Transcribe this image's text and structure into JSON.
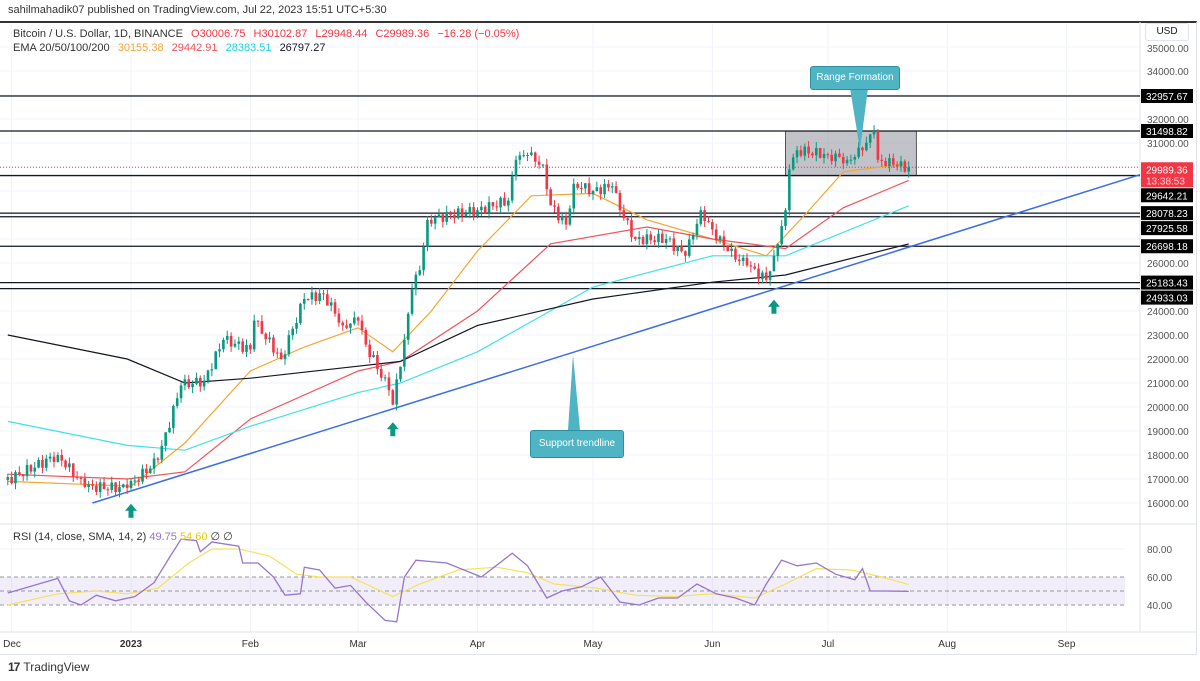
{
  "attribution": "sahilmahadik07 published on TradingView.com, Jul 22, 2023 15:51 UTC+5:30",
  "legend": {
    "symbol": "Bitcoin / U.S. Dollar, 1D, BINANCE",
    "open": "O30006.75",
    "high": "H30102.87",
    "low": "L29948.44",
    "close": "C29989.36",
    "change": "−16.28 (−0.05%)",
    "ema_label": "EMA 20/50/100/200",
    "ema_values": [
      "30155.38",
      "29442.91",
      "28383.51",
      "26797.27"
    ]
  },
  "rsi_legend": {
    "label": "RSI (14, close, SMA, 14, 2)",
    "rsi": "49.75",
    "sma": "54.60",
    "extra": "∅ ∅"
  },
  "currency": "USD",
  "logo": "TradingView",
  "colors": {
    "up": "#089981",
    "down": "#f23645",
    "ema20": "#f7a531",
    "ema50": "#f0545b",
    "ema100": "#3fe0ea",
    "ema200": "#131722",
    "trend": "#3a6de8",
    "rsi": "#9575cd",
    "rsi_sma": "#f5e15c",
    "callout": "#4fb4c4"
  },
  "chart_data": {
    "type": "candlestick",
    "price_axis": {
      "ticks": [
        "35000.00",
        "34000.00",
        "32000.00",
        "31000.00",
        "26000.00",
        "24000.00",
        "23000.00",
        "22000.00",
        "21000.00",
        "20000.00",
        "19000.00",
        "18000.00",
        "17000.00",
        "16000.00"
      ],
      "range": [
        15800,
        35200
      ]
    },
    "time_axis": {
      "ticks": [
        {
          "label": "Dec",
          "date": "2022-12-01"
        },
        {
          "label": "2023",
          "date": "2023-01-01",
          "bold": true
        },
        {
          "label": "Feb",
          "date": "2023-02-01"
        },
        {
          "label": "Mar",
          "date": "2023-03-01"
        },
        {
          "label": "Apr",
          "date": "2023-04-01"
        },
        {
          "label": "May",
          "date": "2023-05-01"
        },
        {
          "label": "Jun",
          "date": "2023-06-01"
        },
        {
          "label": "Jul",
          "date": "2023-07-01"
        },
        {
          "label": "Aug",
          "date": "2023-08-01"
        },
        {
          "label": "Sep",
          "date": "2023-09-01"
        }
      ]
    },
    "price_path": [
      [
        "2022-11-30",
        16960
      ],
      [
        "2022-12-13",
        18000
      ],
      [
        "2022-12-20",
        16670
      ],
      [
        "2022-12-31",
        16625
      ],
      [
        "2023-01-08",
        17800
      ],
      [
        "2023-01-14",
        20900
      ],
      [
        "2023-01-20",
        21100
      ],
      [
        "2023-01-25",
        22800
      ],
      [
        "2023-02-01",
        22400
      ],
      [
        "2023-02-02",
        23600
      ],
      [
        "2023-02-09",
        22000
      ],
      [
        "2023-02-15",
        24500
      ],
      [
        "2023-02-20",
        24700
      ],
      [
        "2023-02-25",
        23400
      ],
      [
        "2023-03-01",
        23600
      ],
      [
        "2023-03-03",
        22600
      ],
      [
        "2023-03-09",
        20700
      ],
      [
        "2023-03-10",
        20100
      ],
      [
        "2023-03-13",
        22800
      ],
      [
        "2023-03-15",
        24900
      ],
      [
        "2023-03-17",
        25700
      ],
      [
        "2023-03-19",
        27800
      ],
      [
        "2023-03-25",
        28000
      ],
      [
        "2023-04-01",
        28200
      ],
      [
        "2023-04-09",
        28600
      ],
      [
        "2023-04-11",
        30300
      ],
      [
        "2023-04-14",
        30500
      ],
      [
        "2023-04-18",
        30100
      ],
      [
        "2023-04-20",
        28400
      ],
      [
        "2023-04-24",
        27600
      ],
      [
        "2023-04-26",
        29300
      ],
      [
        "2023-05-01",
        29000
      ],
      [
        "2023-05-06",
        29200
      ],
      [
        "2023-05-08",
        28200
      ],
      [
        "2023-05-12",
        27000
      ],
      [
        "2023-05-20",
        27000
      ],
      [
        "2023-05-25",
        26300
      ],
      [
        "2023-05-29",
        28200
      ],
      [
        "2023-06-01",
        27400
      ],
      [
        "2023-06-05",
        26500
      ],
      [
        "2023-06-10",
        25900
      ],
      [
        "2023-06-15",
        25300
      ],
      [
        "2023-06-17",
        26300
      ],
      [
        "2023-06-20",
        28200
      ],
      [
        "2023-06-21",
        29900
      ],
      [
        "2023-06-23",
        30700
      ],
      [
        "2023-07-01",
        30500
      ],
      [
        "2023-07-06",
        30300
      ],
      [
        "2023-07-10",
        30700
      ],
      [
        "2023-07-13",
        31500
      ],
      [
        "2023-07-14",
        30300
      ],
      [
        "2023-07-18",
        30100
      ],
      [
        "2023-07-22",
        29989.36
      ]
    ],
    "ema": [
      {
        "name": "EMA 20",
        "color": "#f7a531",
        "points": [
          [
            "2022-11-30",
            16900
          ],
          [
            "2023-01-01",
            16700
          ],
          [
            "2023-01-15",
            18500
          ],
          [
            "2023-02-01",
            21500
          ],
          [
            "2023-02-15",
            22500
          ],
          [
            "2023-03-01",
            23300
          ],
          [
            "2023-03-10",
            22300
          ],
          [
            "2023-03-20",
            24000
          ],
          [
            "2023-04-01",
            26500
          ],
          [
            "2023-04-15",
            28800
          ],
          [
            "2023-05-01",
            28900
          ],
          [
            "2023-05-15",
            27800
          ],
          [
            "2023-06-01",
            27000
          ],
          [
            "2023-06-15",
            26300
          ],
          [
            "2023-06-25",
            28000
          ],
          [
            "2023-07-05",
            29800
          ],
          [
            "2023-07-22",
            30155.38
          ]
        ]
      },
      {
        "name": "EMA 50",
        "color": "#f0545b",
        "points": [
          [
            "2022-11-30",
            17200
          ],
          [
            "2022-12-31",
            17000
          ],
          [
            "2023-01-15",
            17300
          ],
          [
            "2023-02-01",
            19500
          ],
          [
            "2023-03-01",
            21500
          ],
          [
            "2023-03-12",
            21900
          ],
          [
            "2023-04-01",
            24000
          ],
          [
            "2023-04-20",
            26800
          ],
          [
            "2023-05-15",
            27500
          ],
          [
            "2023-06-01",
            27000
          ],
          [
            "2023-06-20",
            26600
          ],
          [
            "2023-07-05",
            28300
          ],
          [
            "2023-07-22",
            29442.91
          ]
        ]
      },
      {
        "name": "EMA 100",
        "color": "#3fe0ea",
        "points": [
          [
            "2022-11-30",
            19400
          ],
          [
            "2022-12-31",
            18400
          ],
          [
            "2023-01-15",
            18200
          ],
          [
            "2023-02-01",
            19200
          ],
          [
            "2023-03-01",
            20600
          ],
          [
            "2023-03-12",
            21000
          ],
          [
            "2023-04-01",
            22300
          ],
          [
            "2023-05-01",
            25000
          ],
          [
            "2023-06-01",
            26300
          ],
          [
            "2023-06-20",
            26300
          ],
          [
            "2023-07-22",
            28383.51
          ]
        ]
      },
      {
        "name": "EMA 200",
        "color": "#131722",
        "points": [
          [
            "2022-11-30",
            23000
          ],
          [
            "2022-12-31",
            22000
          ],
          [
            "2023-01-15",
            21000
          ],
          [
            "2023-02-01",
            21200
          ],
          [
            "2023-03-01",
            21700
          ],
          [
            "2023-03-12",
            21900
          ],
          [
            "2023-04-01",
            23400
          ],
          [
            "2023-05-01",
            24500
          ],
          [
            "2023-06-01",
            25200
          ],
          [
            "2023-06-20",
            25500
          ],
          [
            "2023-07-22",
            26797.27
          ]
        ]
      }
    ],
    "horizontal_levels": [
      "32957.67",
      "31498.82",
      "29642.21",
      "28078.23",
      "27925.58",
      "26698.18",
      "25183.43",
      "24933.03"
    ],
    "last_price": {
      "value": "29989.36",
      "countdown": "13:38:53"
    },
    "trendline": {
      "label": "Support trendline",
      "points": [
        [
          "2022-12-22",
          16000
        ],
        [
          "2023-06-17",
          24900
        ]
      ]
    },
    "range_box": {
      "label": "Range Formation",
      "from": "2023-06-20",
      "to": "2023-07-24",
      "top": 31498.82,
      "bottom": 29642.21
    },
    "arrows_up": [
      [
        "2023-01-01",
        16300
      ],
      [
        "2023-03-10",
        19700
      ],
      [
        "2023-06-17",
        24800
      ]
    ],
    "rsi": {
      "ticks": [
        "80.00",
        "60.00",
        "40.00"
      ],
      "band": [
        40,
        60
      ],
      "mid": 50,
      "rsi_points": [
        [
          "2022-11-30",
          48.6
        ],
        [
          "2022-12-13",
          59
        ],
        [
          "2022-12-16",
          43
        ],
        [
          "2022-12-19",
          40
        ],
        [
          "2022-12-23",
          47
        ],
        [
          "2022-12-28",
          43
        ],
        [
          "2023-01-02",
          46
        ],
        [
          "2023-01-07",
          56
        ],
        [
          "2023-01-11",
          74
        ],
        [
          "2023-01-14",
          87
        ],
        [
          "2023-01-18",
          86
        ],
        [
          "2023-01-19",
          78
        ],
        [
          "2023-01-22",
          85
        ],
        [
          "2023-01-29",
          82
        ],
        [
          "2023-01-30",
          70
        ],
        [
          "2023-02-03",
          70
        ],
        [
          "2023-02-07",
          60
        ],
        [
          "2023-02-10",
          47
        ],
        [
          "2023-02-14",
          48
        ],
        [
          "2023-02-15",
          67
        ],
        [
          "2023-02-19",
          65
        ],
        [
          "2023-02-23",
          52
        ],
        [
          "2023-02-27",
          54
        ],
        [
          "2023-03-03",
          42
        ],
        [
          "2023-03-08",
          29
        ],
        [
          "2023-03-11",
          28
        ],
        [
          "2023-03-13",
          60
        ],
        [
          "2023-03-16",
          72
        ],
        [
          "2023-03-24",
          70
        ],
        [
          "2023-04-02",
          60
        ],
        [
          "2023-04-10",
          77
        ],
        [
          "2023-04-14",
          68
        ],
        [
          "2023-04-19",
          45
        ],
        [
          "2023-04-23",
          50
        ],
        [
          "2023-04-28",
          53
        ],
        [
          "2023-05-03",
          60
        ],
        [
          "2023-05-08",
          42
        ],
        [
          "2023-05-13",
          40
        ],
        [
          "2023-05-18",
          45
        ],
        [
          "2023-05-23",
          45
        ],
        [
          "2023-05-28",
          55
        ],
        [
          "2023-06-02",
          48
        ],
        [
          "2023-06-07",
          45
        ],
        [
          "2023-06-12",
          40
        ],
        [
          "2023-06-15",
          55
        ],
        [
          "2023-06-19",
          72
        ],
        [
          "2023-06-23",
          68
        ],
        [
          "2023-06-28",
          70
        ],
        [
          "2023-07-03",
          62
        ],
        [
          "2023-07-08",
          58
        ],
        [
          "2023-07-10",
          66
        ],
        [
          "2023-07-12",
          50
        ],
        [
          "2023-07-16",
          50
        ],
        [
          "2023-07-22",
          49.75
        ]
      ],
      "sma_points": [
        [
          "2022-11-30",
          40
        ],
        [
          "2022-12-13",
          48
        ],
        [
          "2022-12-23",
          50
        ],
        [
          "2022-12-31",
          48
        ],
        [
          "2023-01-08",
          52
        ],
        [
          "2023-01-16",
          70
        ],
        [
          "2023-01-22",
          80
        ],
        [
          "2023-01-29",
          80
        ],
        [
          "2023-02-06",
          75
        ],
        [
          "2023-02-13",
          62
        ],
        [
          "2023-02-19",
          60
        ],
        [
          "2023-02-27",
          60
        ],
        [
          "2023-03-03",
          55
        ],
        [
          "2023-03-10",
          46
        ],
        [
          "2023-03-17",
          55
        ],
        [
          "2023-03-27",
          65
        ],
        [
          "2023-04-06",
          67
        ],
        [
          "2023-04-14",
          63
        ],
        [
          "2023-04-21",
          55
        ],
        [
          "2023-05-02",
          52
        ],
        [
          "2023-05-12",
          47
        ],
        [
          "2023-05-22",
          46
        ],
        [
          "2023-06-01",
          48
        ],
        [
          "2023-06-12",
          45
        ],
        [
          "2023-06-20",
          55
        ],
        [
          "2023-06-28",
          66
        ],
        [
          "2023-07-07",
          65
        ],
        [
          "2023-07-15",
          60
        ],
        [
          "2023-07-22",
          54.6
        ]
      ]
    }
  }
}
